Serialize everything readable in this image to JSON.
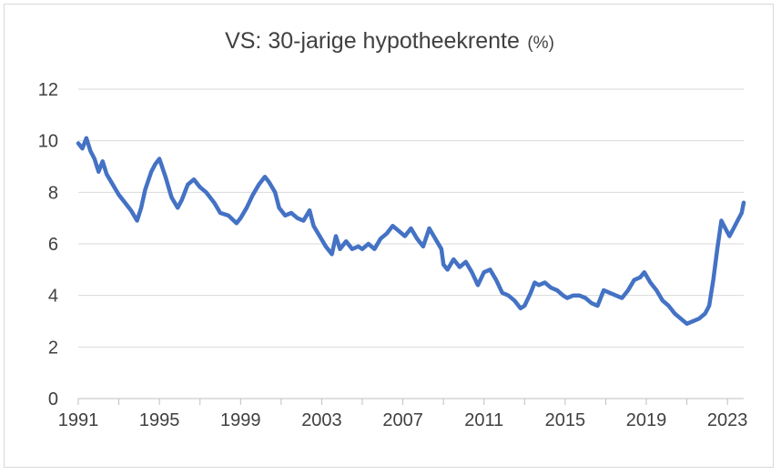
{
  "chart_data": {
    "type": "line",
    "title": "VS: 30-jarige hypotheekrente",
    "title_unit": "(%)",
    "xlabel": "",
    "ylabel": "",
    "ylim": [
      0,
      12
    ],
    "xlim": [
      1991.0,
      2023.8
    ],
    "y_ticks": [
      0,
      2,
      4,
      6,
      8,
      10,
      12
    ],
    "x_tick_labels": [
      "1991",
      "1995",
      "1999",
      "2003",
      "2007",
      "2011",
      "2015",
      "2019",
      "2023"
    ],
    "grid": "horizontal",
    "legend": "none",
    "color": "#4472C4",
    "series": [
      {
        "values_x": [
          1991.0,
          1991.2,
          1991.4,
          1991.6,
          1991.8,
          1992.0,
          1992.2,
          1992.4,
          1992.7,
          1993.0,
          1993.3,
          1993.6,
          1993.9,
          1994.1,
          1994.3,
          1994.6,
          1994.8,
          1995.0,
          1995.3,
          1995.6,
          1995.9,
          1996.1,
          1996.4,
          1996.7,
          1997.0,
          1997.3,
          1997.7,
          1998.0,
          1998.4,
          1998.8,
          1999.0,
          1999.3,
          1999.6,
          1999.9,
          2000.2,
          2000.4,
          2000.7,
          2000.9,
          2001.2,
          2001.5,
          2001.8,
          2002.1,
          2002.4,
          2002.6,
          2002.9,
          2003.2,
          2003.5,
          2003.7,
          2003.9,
          2004.2,
          2004.5,
          2004.8,
          2005.0,
          2005.3,
          2005.6,
          2005.9,
          2006.2,
          2006.5,
          2006.8,
          2007.1,
          2007.4,
          2007.7,
          2008.0,
          2008.3,
          2008.6,
          2008.9,
          2009.0,
          2009.2,
          2009.5,
          2009.8,
          2010.1,
          2010.4,
          2010.7,
          2011.0,
          2011.3,
          2011.6,
          2011.9,
          2012.2,
          2012.5,
          2012.8,
          2013.0,
          2013.3,
          2013.5,
          2013.7,
          2014.0,
          2014.3,
          2014.6,
          2014.9,
          2015.1,
          2015.4,
          2015.7,
          2016.0,
          2016.3,
          2016.6,
          2016.9,
          2017.2,
          2017.5,
          2017.8,
          2018.1,
          2018.4,
          2018.7,
          2018.9,
          2019.2,
          2019.5,
          2019.8,
          2020.1,
          2020.4,
          2020.7,
          2021.0,
          2021.3,
          2021.6,
          2021.9,
          2022.1,
          2022.3,
          2022.5,
          2022.7,
          2022.9,
          2023.1,
          2023.3,
          2023.5,
          2023.7,
          2023.8
        ],
        "values": [
          9.9,
          9.7,
          10.1,
          9.6,
          9.3,
          8.8,
          9.2,
          8.7,
          8.3,
          7.9,
          7.6,
          7.3,
          6.9,
          7.4,
          8.1,
          8.8,
          9.1,
          9.3,
          8.6,
          7.8,
          7.4,
          7.7,
          8.3,
          8.5,
          8.2,
          8.0,
          7.6,
          7.2,
          7.1,
          6.8,
          7.0,
          7.4,
          7.9,
          8.3,
          8.6,
          8.4,
          8.0,
          7.4,
          7.1,
          7.2,
          7.0,
          6.9,
          7.3,
          6.7,
          6.3,
          5.9,
          5.6,
          6.3,
          5.8,
          6.1,
          5.8,
          5.9,
          5.8,
          6.0,
          5.8,
          6.2,
          6.4,
          6.7,
          6.5,
          6.3,
          6.6,
          6.2,
          5.9,
          6.6,
          6.2,
          5.8,
          5.2,
          5.0,
          5.4,
          5.1,
          5.3,
          4.9,
          4.4,
          4.9,
          5.0,
          4.6,
          4.1,
          4.0,
          3.8,
          3.5,
          3.6,
          4.1,
          4.5,
          4.4,
          4.5,
          4.3,
          4.2,
          4.0,
          3.9,
          4.0,
          4.0,
          3.9,
          3.7,
          3.6,
          4.2,
          4.1,
          4.0,
          3.9,
          4.2,
          4.6,
          4.7,
          4.9,
          4.5,
          4.2,
          3.8,
          3.6,
          3.3,
          3.1,
          2.9,
          3.0,
          3.1,
          3.3,
          3.6,
          4.6,
          5.8,
          6.9,
          6.6,
          6.3,
          6.6,
          6.9,
          7.2,
          7.6
        ]
      }
    ]
  }
}
